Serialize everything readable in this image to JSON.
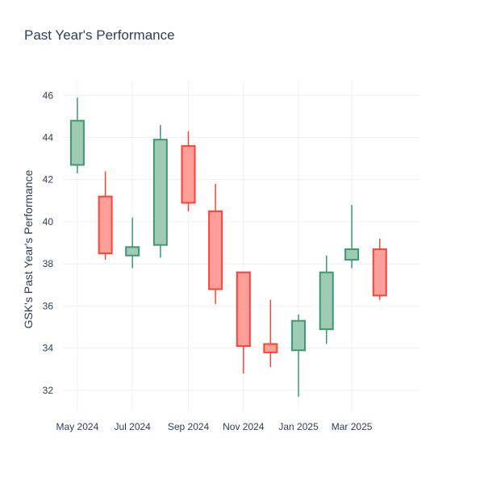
{
  "chart_data": {
    "type": "candlestick",
    "title": "Past Year's Performance",
    "xlabel": "",
    "ylabel": "GSK's Past Year's Performance",
    "y_ticks": [
      32,
      34,
      36,
      38,
      40,
      42,
      44,
      46
    ],
    "x_ticks": [
      {
        "date": "2024-05-01",
        "label": "May 2024"
      },
      {
        "date": "2024-07-01",
        "label": "Jul 2024"
      },
      {
        "date": "2024-09-01",
        "label": "Sep 2024"
      },
      {
        "date": "2024-11-01",
        "label": "Nov 2024"
      },
      {
        "date": "2025-01-01",
        "label": "Jan 2025"
      },
      {
        "date": "2025-03-01",
        "label": "Mar 2025"
      }
    ],
    "xlim": [
      "2024-04-15",
      "2025-05-15"
    ],
    "ylim": [
      31.0,
      46.7
    ],
    "grid": true,
    "legend": "none",
    "colors": {
      "increasing_line": "#3d9970",
      "increasing_fill": "#9ecbb2",
      "decreasing_line": "#ff4136",
      "decreasing_fill": "#ff9f9a",
      "grid": "#ebf0f8",
      "text": "#2a3f5f"
    },
    "candles": [
      {
        "date": "2024-05-01",
        "open": 42.7,
        "high": 45.9,
        "low": 42.3,
        "close": 44.8
      },
      {
        "date": "2024-06-01",
        "open": 41.2,
        "high": 42.4,
        "low": 38.2,
        "close": 38.5
      },
      {
        "date": "2024-07-01",
        "open": 38.4,
        "high": 40.2,
        "low": 37.8,
        "close": 38.8
      },
      {
        "date": "2024-08-01",
        "open": 38.9,
        "high": 44.6,
        "low": 38.3,
        "close": 43.9
      },
      {
        "date": "2024-09-01",
        "open": 43.6,
        "high": 44.3,
        "low": 40.5,
        "close": 40.9
      },
      {
        "date": "2024-10-01",
        "open": 40.5,
        "high": 41.8,
        "low": 36.1,
        "close": 36.8
      },
      {
        "date": "2024-11-01",
        "open": 37.6,
        "high": 37.6,
        "low": 32.8,
        "close": 34.1
      },
      {
        "date": "2024-12-01",
        "open": 34.2,
        "high": 36.3,
        "low": 33.1,
        "close": 33.8
      },
      {
        "date": "2025-01-01",
        "open": 33.9,
        "high": 35.6,
        "low": 31.7,
        "close": 35.3
      },
      {
        "date": "2025-02-01",
        "open": 34.9,
        "high": 38.4,
        "low": 34.2,
        "close": 37.6
      },
      {
        "date": "2025-03-01",
        "open": 38.2,
        "high": 40.8,
        "low": 37.8,
        "close": 38.7
      },
      {
        "date": "2025-04-01",
        "open": 38.7,
        "high": 39.2,
        "low": 36.3,
        "close": 36.5
      }
    ]
  }
}
